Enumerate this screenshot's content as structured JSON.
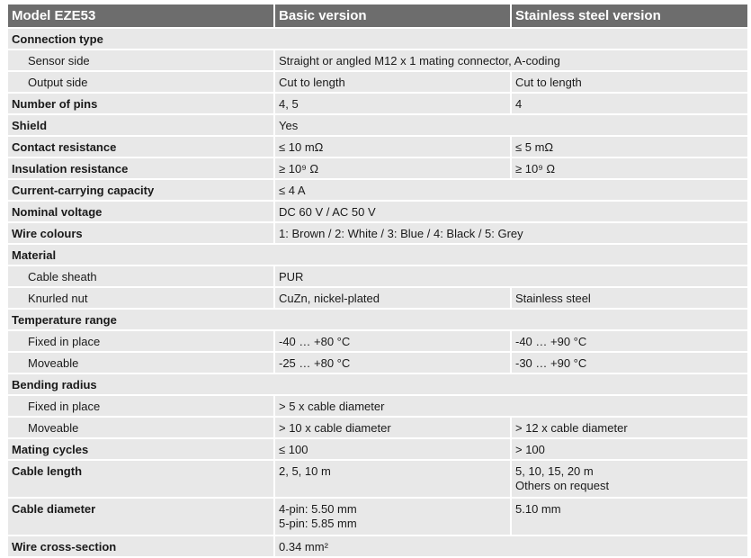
{
  "header": {
    "model": "Model EZE53",
    "basic": "Basic version",
    "stainless": "Stainless steel version"
  },
  "colors": {
    "header_bg": "#6d6d6d",
    "cell_bg": "#e8e8e8",
    "header_text": "#ffffff"
  },
  "rows": [
    {
      "label": "Connection type",
      "type": "section"
    },
    {
      "label": "Sensor side",
      "indent": true,
      "values": [
        "Straight or angled M12 x 1 mating connector, A-coding"
      ]
    },
    {
      "label": "Output side",
      "indent": true,
      "values": [
        "Cut to length",
        "Cut to length"
      ]
    },
    {
      "label": "Number of pins",
      "values": [
        "4, 5",
        "4"
      ]
    },
    {
      "label": "Shield",
      "values": [
        "Yes"
      ]
    },
    {
      "label": "Contact resistance",
      "values": [
        "≤ 10 mΩ",
        "≤ 5 mΩ"
      ]
    },
    {
      "label": "Insulation resistance",
      "values": [
        "≥ 10⁹ Ω",
        "≥ 10⁹ Ω"
      ]
    },
    {
      "label": "Current-carrying capacity",
      "values": [
        "≤ 4 A"
      ]
    },
    {
      "label": "Nominal voltage",
      "values": [
        "DC 60 V / AC 50 V"
      ]
    },
    {
      "label": "Wire colours",
      "values": [
        "1: Brown / 2: White / 3: Blue / 4: Black / 5: Grey"
      ]
    },
    {
      "label": "Material",
      "type": "section"
    },
    {
      "label": "Cable sheath",
      "indent": true,
      "values": [
        "PUR"
      ]
    },
    {
      "label": "Knurled nut",
      "indent": true,
      "values": [
        "CuZn, nickel-plated",
        "Stainless steel"
      ]
    },
    {
      "label": "Temperature range",
      "type": "section"
    },
    {
      "label": "Fixed in place",
      "indent": true,
      "values": [
        "-40 … +80 °C",
        "-40 … +90 °C"
      ]
    },
    {
      "label": "Moveable",
      "indent": true,
      "values": [
        "-25 … +80 °C",
        "-30 … +90 °C"
      ]
    },
    {
      "label": "Bending radius",
      "type": "section"
    },
    {
      "label": "Fixed in place",
      "indent": true,
      "values": [
        "> 5 x cable diameter"
      ]
    },
    {
      "label": "Moveable",
      "indent": true,
      "values": [
        "> 10 x cable diameter",
        "> 12 x cable diameter"
      ]
    },
    {
      "label": "Mating cycles",
      "values": [
        "≤ 100",
        "> 100"
      ]
    },
    {
      "label": "Cable length",
      "multi": true,
      "values": [
        [
          "2, 5, 10 m"
        ],
        [
          " 5, 10, 15, 20 m",
          "Others on request"
        ]
      ]
    },
    {
      "label": "Cable diameter",
      "multi": true,
      "values": [
        [
          "4-pin: 5.50 mm",
          "5-pin: 5.85 mm"
        ],
        [
          "5.10 mm"
        ]
      ]
    },
    {
      "label": "Wire cross-section",
      "values": [
        "0.34 mm²"
      ]
    }
  ]
}
